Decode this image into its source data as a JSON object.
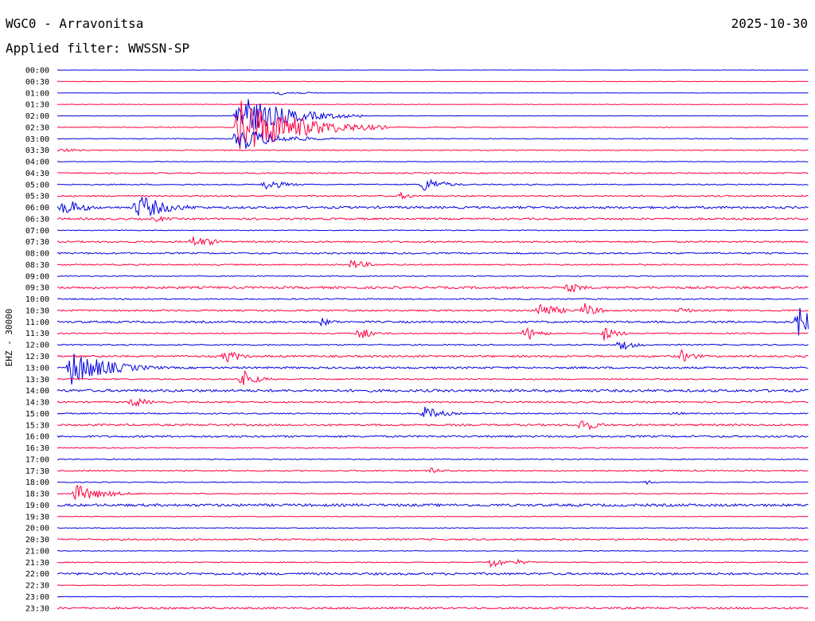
{
  "header": {
    "station": "WGC0 - Arravonitsa",
    "date": "2025-10-30",
    "filter": "Applied filter: WWSSN-SP"
  },
  "colors": {
    "even": "#0000e0",
    "odd": "#ff0040"
  },
  "chart_data": {
    "type": "line",
    "title": "WGC0 - Arravonitsa",
    "ylabel": "EHZ - 30000",
    "tick_labels": [
      "00:00",
      "00:30",
      "01:00",
      "01:30",
      "02:00",
      "02:30",
      "03:00",
      "03:30",
      "04:00",
      "04:30",
      "05:00",
      "05:30",
      "06:00",
      "06:30",
      "07:00",
      "07:30",
      "08:00",
      "08:30",
      "09:00",
      "09:30",
      "10:00",
      "10:30",
      "11:00",
      "11:30",
      "12:00",
      "12:30",
      "13:00",
      "13:30",
      "14:00",
      "14:30",
      "15:00",
      "15:30",
      "16:00",
      "16:30",
      "17:00",
      "17:30",
      "18:00",
      "18:30",
      "19:00",
      "19:30",
      "20:00",
      "20:30",
      "21:00",
      "21:30",
      "22:00",
      "22:30",
      "23:00",
      "23:30"
    ],
    "trace_minutes": 30,
    "noise_amplitude": [
      0.2,
      0.3,
      0.2,
      0.3,
      0.3,
      0.5,
      0.5,
      0.6,
      0.4,
      0.8,
      0.7,
      0.9,
      1.4,
      1.2,
      0.5,
      1.0,
      1.0,
      0.8,
      0.6,
      1.4,
      0.8,
      1.0,
      1.2,
      0.8,
      0.8,
      1.2,
      1.2,
      0.8,
      1.6,
      1.0,
      0.8,
      1.2,
      1.2,
      0.6,
      0.6,
      0.8,
      0.6,
      0.6,
      1.6,
      0.4,
      0.4,
      1.0,
      0.4,
      0.6,
      1.4,
      0.4,
      0.4,
      1.2
    ],
    "events": [
      {
        "trace": 1,
        "minute": 1,
        "amplitude": 1,
        "duration": 1.5
      },
      {
        "trace": 2,
        "minute": 8.7,
        "amplitude": 3,
        "duration": 3
      },
      {
        "trace": 4,
        "minute": 7.2,
        "amplitude": 28,
        "duration": 5
      },
      {
        "trace": 5,
        "minute": 7.2,
        "amplitude": 40,
        "duration": 6
      },
      {
        "trace": 6,
        "minute": 7.2,
        "amplitude": 16,
        "duration": 4
      },
      {
        "trace": 7,
        "minute": 0.1,
        "amplitude": 3,
        "duration": 2
      },
      {
        "trace": 10,
        "minute": 8.3,
        "amplitude": 8,
        "duration": 2
      },
      {
        "trace": 10,
        "minute": 14.6,
        "amplitude": 11,
        "duration": 2
      },
      {
        "trace": 11,
        "minute": 13.7,
        "amplitude": 5,
        "duration": 1.5
      },
      {
        "trace": 12,
        "minute": 0.2,
        "amplitude": 14,
        "duration": 2
      },
      {
        "trace": 12,
        "minute": 3.2,
        "amplitude": 18,
        "duration": 3
      },
      {
        "trace": 13,
        "minute": 3.9,
        "amplitude": 4,
        "duration": 2
      },
      {
        "trace": 15,
        "minute": 5.4,
        "amplitude": 9,
        "duration": 1.5
      },
      {
        "trace": 15,
        "minute": 5.9,
        "amplitude": 6,
        "duration": 1.5
      },
      {
        "trace": 17,
        "minute": 11.7,
        "amplitude": 7,
        "duration": 2
      },
      {
        "trace": 19,
        "minute": 20.4,
        "amplitude": 8,
        "duration": 1.5
      },
      {
        "trace": 21,
        "minute": 19.2,
        "amplitude": 12,
        "duration": 2
      },
      {
        "trace": 21,
        "minute": 21.0,
        "amplitude": 11,
        "duration": 1.5
      },
      {
        "trace": 21,
        "minute": 24.8,
        "amplitude": 5,
        "duration": 1.5
      },
      {
        "trace": 22,
        "minute": 10.5,
        "amplitude": 6,
        "duration": 1.5
      },
      {
        "trace": 22,
        "minute": 29.6,
        "amplitude": 25,
        "duration": 1.5
      },
      {
        "trace": 23,
        "minute": 12.0,
        "amplitude": 10,
        "duration": 1.5
      },
      {
        "trace": 23,
        "minute": 18.7,
        "amplitude": 10,
        "duration": 1.5
      },
      {
        "trace": 23,
        "minute": 21.8,
        "amplitude": 10,
        "duration": 1.5
      },
      {
        "trace": 24,
        "minute": 22.5,
        "amplitude": 8,
        "duration": 1.5
      },
      {
        "trace": 25,
        "minute": 6.7,
        "amplitude": 10,
        "duration": 1.5
      },
      {
        "trace": 25,
        "minute": 24.9,
        "amplitude": 9,
        "duration": 1.5
      },
      {
        "trace": 26,
        "minute": 0.5,
        "amplitude": 24,
        "duration": 4
      },
      {
        "trace": 27,
        "minute": 7.4,
        "amplitude": 12,
        "duration": 1.5
      },
      {
        "trace": 29,
        "minute": 3.0,
        "amplitude": 8,
        "duration": 1.5
      },
      {
        "trace": 30,
        "minute": 14.6,
        "amplitude": 10,
        "duration": 2
      },
      {
        "trace": 30,
        "minute": 24.6,
        "amplitude": 4,
        "duration": 1
      },
      {
        "trace": 31,
        "minute": 20.9,
        "amplitude": 11,
        "duration": 1.5
      },
      {
        "trace": 35,
        "minute": 14.9,
        "amplitude": 4,
        "duration": 1.5
      },
      {
        "trace": 36,
        "minute": 23.5,
        "amplitude": 3,
        "duration": 1
      },
      {
        "trace": 37,
        "minute": 0.7,
        "amplitude": 12,
        "duration": 3
      },
      {
        "trace": 43,
        "minute": 17.3,
        "amplitude": 8,
        "duration": 1.5
      },
      {
        "trace": 43,
        "minute": 18.3,
        "amplitude": 4,
        "duration": 1.5
      }
    ]
  }
}
